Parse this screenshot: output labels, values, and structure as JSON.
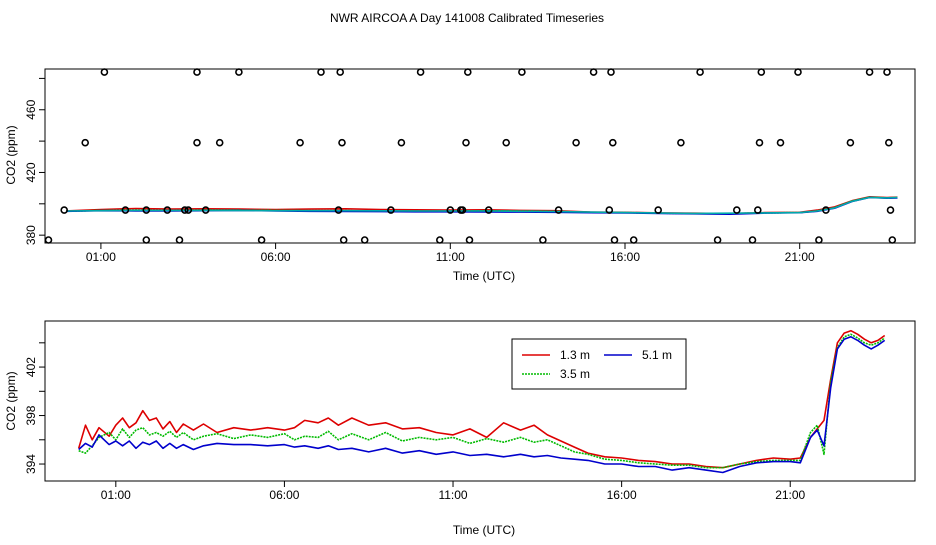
{
  "figure_title": "NWR AIRCOA A  Day 141008  Calibrated Timeseries",
  "colors": {
    "s1": "#dd0000",
    "s2": "#00bb00",
    "s3": "#0000cc",
    "s4": "#00aaaa",
    "flag": "#000000"
  },
  "chart_data": [
    {
      "type": "line",
      "title": "",
      "xlabel": "Time (UTC)",
      "ylabel": "CO2 (ppm)",
      "xlim": [
        -0.6,
        24.3
      ],
      "ylim": [
        375,
        486
      ],
      "x_ticks": [
        1,
        6,
        11,
        16,
        21
      ],
      "x_tick_labels": [
        "01:00",
        "06:00",
        "11:00",
        "16:00",
        "21:00"
      ],
      "y_ticks": [
        380,
        420,
        460
      ],
      "y_tick_labels": [
        "380",
        "420",
        "460"
      ],
      "y_minor_ticks": [
        400,
        440,
        480
      ],
      "grid": false,
      "legend": "none",
      "series": [
        {
          "color_key": "s1",
          "x": [
            0,
            1,
            2,
            3,
            4,
            5,
            6,
            7,
            8,
            9,
            10,
            11,
            12,
            13,
            14,
            15,
            16,
            17,
            18,
            19,
            20,
            21,
            21.5,
            22,
            22.5,
            23,
            23.5,
            23.8
          ],
          "values": [
            395.5,
            396.4,
            397,
            396.6,
            396.8,
            396.6,
            396.4,
            396.6,
            396.8,
            396.4,
            396.2,
            396,
            396.2,
            395.8,
            395.6,
            394.8,
            394.6,
            394.2,
            394,
            393.8,
            394.4,
            394.6,
            396,
            398,
            402,
            404.5,
            404,
            404.2
          ]
        },
        {
          "color_key": "s2",
          "x": [
            0,
            1,
            2,
            3,
            4,
            5,
            6,
            7,
            8,
            9,
            10,
            11,
            12,
            13,
            14,
            15,
            16,
            17,
            18,
            19,
            20,
            21,
            21.5,
            22,
            22.5,
            23,
            23.5,
            23.8
          ],
          "values": [
            395.2,
            395.8,
            396,
            395.8,
            396,
            396,
            395.8,
            395.6,
            395.6,
            395.5,
            395.4,
            395.4,
            395.6,
            395.4,
            395.2,
            394.6,
            394.4,
            394,
            393.8,
            393.8,
            394.2,
            394.4,
            395.5,
            397.5,
            401.8,
            404.2,
            403.8,
            404
          ]
        },
        {
          "color_key": "s3",
          "x": [
            0,
            1,
            2,
            3,
            4,
            5,
            6,
            7,
            8,
            9,
            10,
            11,
            12,
            13,
            14,
            15,
            16,
            17,
            18,
            19,
            20,
            21,
            21.5,
            22,
            22.5,
            23,
            23.5,
            23.8
          ],
          "values": [
            395.2,
            395.6,
            395.5,
            395.4,
            395.6,
            395.8,
            395.4,
            395.2,
            395.1,
            395,
            394.9,
            394.9,
            394.8,
            394.7,
            394.6,
            394.3,
            394.2,
            393.8,
            393.6,
            393.4,
            394.1,
            394.3,
            395.2,
            397.2,
            401.5,
            404,
            403.6,
            403.8
          ]
        },
        {
          "color_key": "s4",
          "x": [
            0,
            2,
            4,
            6,
            8,
            10,
            12,
            14,
            16,
            18,
            20,
            21,
            21.5,
            22,
            22.5,
            23,
            23.5,
            23.8
          ],
          "values": [
            395.4,
            395.8,
            395.8,
            395.6,
            395.6,
            395.4,
            395.4,
            395,
            394.4,
            393.9,
            394.2,
            394.4,
            395.4,
            397.4,
            401.6,
            404.1,
            403.8,
            404
          ]
        }
      ],
      "flag_points": {
        "x": [
          -0.5,
          -0.05,
          0.55,
          1.1,
          1.7,
          2.3,
          2.3,
          2.9,
          3.25,
          3.4,
          3.5,
          3.75,
          3.75,
          4.0,
          4.4,
          4.95,
          5.6,
          6.7,
          7.3,
          7.8,
          7.85,
          7.9,
          7.95,
          8.55,
          9.3,
          9.6,
          10.15,
          10.7,
          11.0,
          11.3,
          11.35,
          11.45,
          11.5,
          11.55,
          12.1,
          12.6,
          13.05,
          13.65,
          14.1,
          14.6,
          15.1,
          15.55,
          15.6,
          15.65,
          15.7,
          16.25,
          16.95,
          17.6,
          18.15,
          18.65,
          19.2,
          19.65,
          19.8,
          19.85,
          19.9,
          20.45,
          20.95,
          21.55,
          21.75,
          22.45,
          23.0,
          23.5,
          23.55,
          23.6,
          23.65
        ],
        "values": [
          372,
          396,
          439,
          484,
          396,
          372,
          396,
          396,
          372,
          396,
          396,
          439,
          484,
          396,
          439,
          484,
          372,
          439,
          484,
          396,
          484,
          439,
          372,
          372,
          396,
          439,
          484,
          372,
          396,
          396,
          396,
          439,
          484,
          372,
          396,
          439,
          484,
          372,
          396,
          439,
          484,
          396,
          484,
          439,
          372,
          372,
          396,
          439,
          484,
          372,
          396,
          372,
          396,
          439,
          484,
          439,
          484,
          372,
          396,
          439,
          484,
          484,
          439,
          396,
          372
        ]
      }
    },
    {
      "type": "line",
      "title": "",
      "xlabel": "Time (UTC)",
      "ylabel": "CO2 (ppm)",
      "xlim": [
        -1.1,
        24.7
      ],
      "ylim": [
        392.6,
        405.8
      ],
      "x_ticks": [
        1,
        6,
        11,
        16,
        21
      ],
      "x_tick_labels": [
        "01:00",
        "06:00",
        "11:00",
        "16:00",
        "21:00"
      ],
      "y_ticks": [
        394,
        398,
        402
      ],
      "y_tick_labels": [
        "394",
        "398",
        "402"
      ],
      "y_minor_ticks": [
        396,
        400,
        404
      ],
      "grid": false,
      "legend_position": "top-right",
      "legend_entries": [
        {
          "label": "1.3 m",
          "color_key": "s1"
        },
        {
          "label": "5.1 m",
          "color_key": "s3"
        },
        {
          "label": "3.5 m",
          "color_key": "s2"
        }
      ],
      "series": [
        {
          "name": "1.3 m",
          "color_key": "s1",
          "x": [
            -0.1,
            0.1,
            0.3,
            0.5,
            0.8,
            1.0,
            1.2,
            1.4,
            1.6,
            1.8,
            2.0,
            2.2,
            2.4,
            2.6,
            2.8,
            3.0,
            3.3,
            3.6,
            4.0,
            4.5,
            5.0,
            5.5,
            6.0,
            6.3,
            6.6,
            7.0,
            7.3,
            7.6,
            8.0,
            8.5,
            9.0,
            9.5,
            10.0,
            10.5,
            11.0,
            11.5,
            12.0,
            12.5,
            13.0,
            13.4,
            13.8,
            14.2,
            14.6,
            15.0,
            15.5,
            16.0,
            16.5,
            17.0,
            17.5,
            18.0,
            18.5,
            19.0,
            19.5,
            20.0,
            20.5,
            21.0,
            21.3,
            21.6,
            21.8,
            22.0,
            22.2,
            22.4,
            22.6,
            22.8,
            23.0,
            23.2,
            23.4,
            23.6,
            23.8
          ],
          "values": [
            395.3,
            397.2,
            396,
            397,
            396.3,
            397.2,
            397.8,
            397.0,
            397.4,
            398.4,
            397.6,
            397.8,
            396.9,
            397.5,
            396.6,
            397.3,
            396.8,
            397.3,
            396.6,
            397.0,
            396.8,
            397.0,
            396.8,
            397.0,
            397.6,
            397.4,
            397.8,
            397.2,
            397.8,
            397.2,
            397.4,
            396.9,
            397.0,
            396.6,
            396.4,
            396.9,
            396.2,
            397.4,
            396.8,
            397.2,
            396.4,
            395.9,
            395.4,
            394.9,
            394.6,
            394.5,
            394.3,
            394.2,
            394.0,
            394.0,
            393.8,
            393.7,
            394.0,
            394.3,
            394.5,
            394.4,
            394.5,
            396.2,
            396.9,
            397.6,
            401,
            404,
            404.8,
            405.0,
            404.7,
            404.3,
            404.0,
            404.2,
            404.6
          ]
        },
        {
          "name": "3.5 m",
          "color_key": "s2",
          "x": [
            -0.1,
            0.1,
            0.3,
            0.5,
            0.8,
            1.0,
            1.2,
            1.4,
            1.6,
            1.8,
            2.0,
            2.2,
            2.4,
            2.6,
            2.8,
            3.0,
            3.3,
            3.6,
            4.0,
            4.5,
            5.0,
            5.5,
            6.0,
            6.3,
            6.6,
            7.0,
            7.3,
            7.6,
            8.0,
            8.5,
            9.0,
            9.5,
            10.0,
            10.5,
            11.0,
            11.5,
            12.0,
            12.5,
            13.0,
            13.4,
            13.8,
            14.2,
            14.6,
            15.0,
            15.5,
            16.0,
            16.5,
            17.0,
            17.5,
            18.0,
            18.5,
            19.0,
            19.5,
            20.0,
            20.5,
            21.0,
            21.3,
            21.6,
            21.8,
            22.0,
            22.2,
            22.4,
            22.6,
            22.8,
            23.0,
            23.2,
            23.4,
            23.6,
            23.8
          ],
          "values": [
            395.1,
            394.9,
            395.5,
            396.2,
            396.6,
            396.0,
            396.9,
            396.2,
            396.8,
            397.0,
            396.4,
            396.6,
            396.3,
            396.7,
            396.2,
            396.6,
            396.0,
            396.3,
            396.5,
            396.1,
            396.4,
            396.2,
            396.5,
            396.0,
            396.3,
            396.2,
            396.7,
            396.0,
            396.5,
            396.0,
            396.6,
            395.9,
            396.2,
            396.0,
            396.2,
            395.7,
            396.1,
            395.8,
            396.2,
            395.8,
            396.0,
            395.5,
            395.0,
            394.8,
            394.4,
            394.3,
            394.1,
            394.0,
            393.9,
            393.9,
            393.7,
            393.7,
            394.0,
            394.2,
            394.3,
            394.3,
            394.3,
            396.6,
            397.2,
            394.8,
            400.8,
            403.6,
            404.5,
            404.7,
            404.4,
            404.0,
            403.8,
            404.0,
            404.4
          ]
        },
        {
          "name": "5.1 m",
          "color_key": "s3",
          "x": [
            -0.1,
            0.1,
            0.3,
            0.5,
            0.8,
            1.0,
            1.2,
            1.4,
            1.6,
            1.8,
            2.0,
            2.2,
            2.4,
            2.6,
            2.8,
            3.0,
            3.3,
            3.6,
            4.0,
            4.5,
            5.0,
            5.5,
            6.0,
            6.3,
            6.6,
            7.0,
            7.3,
            7.6,
            8.0,
            8.5,
            9.0,
            9.5,
            10.0,
            10.5,
            11.0,
            11.5,
            12.0,
            12.5,
            13.0,
            13.4,
            13.8,
            14.2,
            14.6,
            15.0,
            15.5,
            16.0,
            16.5,
            17.0,
            17.5,
            18.0,
            18.5,
            19.0,
            19.5,
            20.0,
            20.5,
            21.0,
            21.3,
            21.6,
            21.8,
            22.0,
            22.2,
            22.4,
            22.6,
            22.8,
            23.0,
            23.2,
            23.4,
            23.6,
            23.8
          ],
          "values": [
            395.2,
            395.7,
            395.4,
            396.4,
            395.6,
            395.9,
            395.5,
            395.9,
            395.3,
            395.8,
            395.6,
            395.9,
            395.3,
            395.7,
            395.3,
            395.6,
            395.2,
            395.5,
            395.7,
            395.6,
            395.6,
            395.5,
            395.6,
            395.4,
            395.5,
            395.3,
            395.5,
            395.2,
            395.3,
            395.0,
            395.3,
            394.9,
            395.1,
            394.8,
            395.0,
            394.7,
            394.8,
            394.6,
            394.8,
            394.6,
            394.7,
            394.5,
            394.4,
            394.3,
            394.0,
            394.0,
            393.8,
            393.8,
            393.5,
            393.7,
            393.5,
            393.3,
            393.8,
            394.1,
            394.2,
            394.2,
            394.1,
            396.2,
            396.8,
            395.5,
            400.3,
            403.5,
            404.3,
            404.5,
            404.2,
            403.8,
            403.5,
            403.8,
            404.2
          ]
        }
      ]
    }
  ]
}
